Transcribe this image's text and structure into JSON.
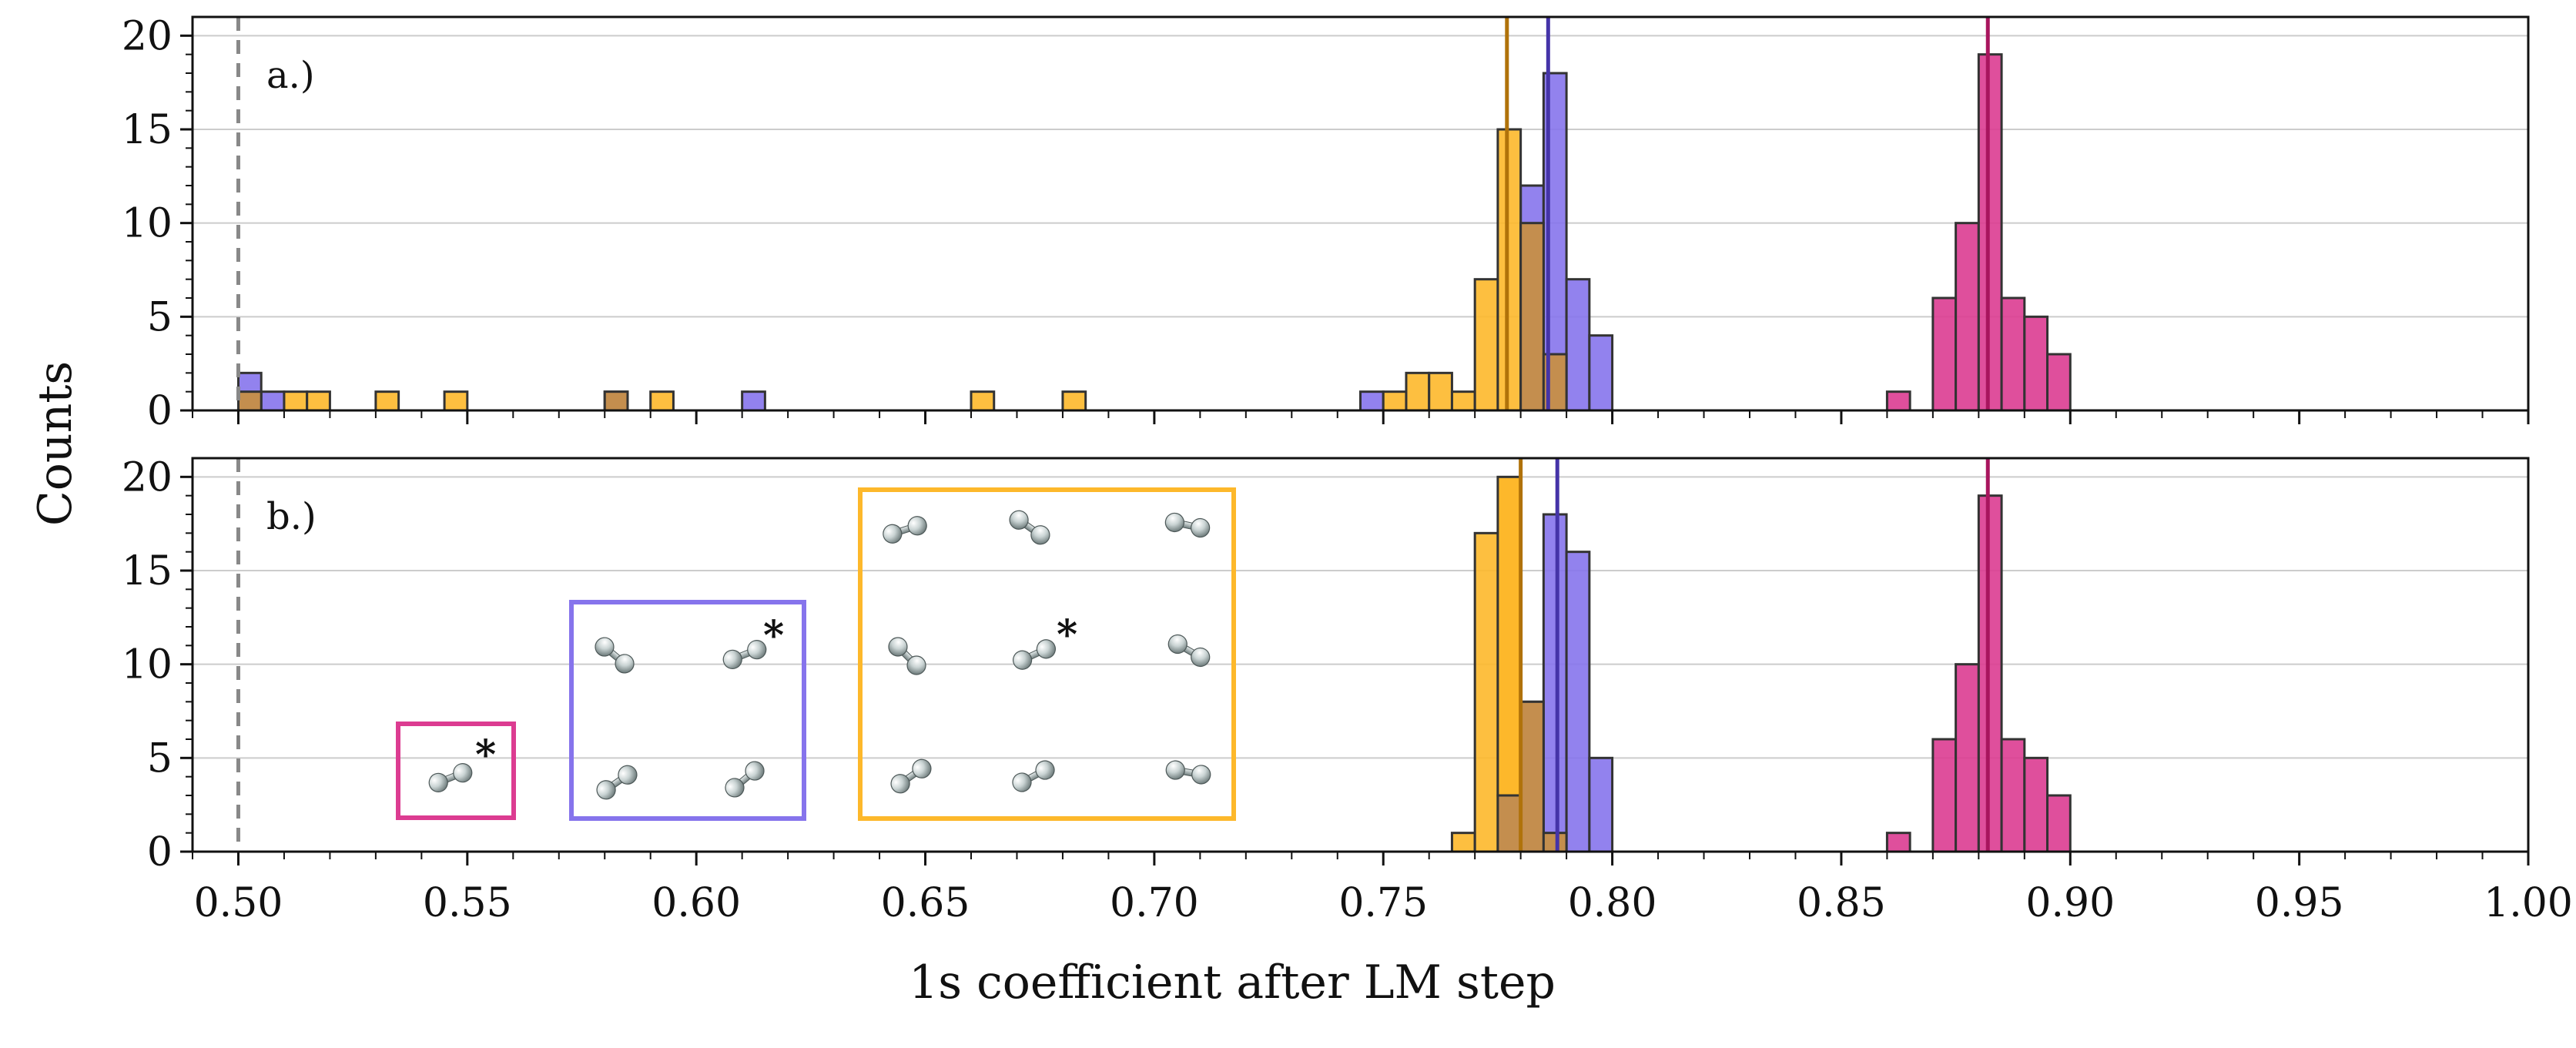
{
  "chart_data": {
    "type": "histogram",
    "xlabel": "1s coefficient after LM step",
    "ylabel": "Counts",
    "xlim": [
      0.49,
      1.0
    ],
    "ylim": [
      0,
      21
    ],
    "xticks": [
      "0.50",
      "0.55",
      "0.60",
      "0.65",
      "0.70",
      "0.75",
      "0.80",
      "0.85",
      "0.90",
      "0.95",
      "1.00"
    ],
    "yticks": [
      "0",
      "5",
      "10",
      "15",
      "20"
    ],
    "bin_width": 0.005,
    "reference_line_x": 0.5,
    "colors": {
      "pink": "#dc3c91",
      "pink_line": "#a8155e",
      "purple": "#8674ec",
      "purple_line": "#4534a8",
      "orange": "#fdb82b",
      "orange_line": "#b0720a",
      "overlap": "#c48e4e",
      "grid": "#cccccc",
      "refline": "#888888"
    },
    "panels": [
      {
        "label": "a.)",
        "series": [
          {
            "name": "pink",
            "bins": [
              [
                0.86,
                1
              ],
              [
                0.87,
                6
              ],
              [
                0.875,
                10
              ],
              [
                0.88,
                19
              ],
              [
                0.885,
                6
              ],
              [
                0.89,
                5
              ],
              [
                0.895,
                3
              ]
            ],
            "mean": 0.882
          },
          {
            "name": "purple",
            "bins": [
              [
                0.5,
                2
              ],
              [
                0.505,
                1
              ],
              [
                0.58,
                1
              ],
              [
                0.61,
                1
              ],
              [
                0.745,
                1
              ],
              [
                0.78,
                12
              ],
              [
                0.785,
                18
              ],
              [
                0.79,
                7
              ],
              [
                0.795,
                4
              ]
            ],
            "mean": 0.786
          },
          {
            "name": "orange",
            "bins": [
              [
                0.5,
                1
              ],
              [
                0.51,
                1
              ],
              [
                0.515,
                1
              ],
              [
                0.53,
                1
              ],
              [
                0.545,
                1
              ],
              [
                0.58,
                1
              ],
              [
                0.59,
                1
              ],
              [
                0.66,
                1
              ],
              [
                0.68,
                1
              ],
              [
                0.75,
                1
              ],
              [
                0.755,
                2
              ],
              [
                0.76,
                2
              ],
              [
                0.765,
                1
              ],
              [
                0.77,
                7
              ],
              [
                0.775,
                15
              ],
              [
                0.78,
                10
              ],
              [
                0.785,
                3
              ]
            ],
            "mean": 0.777
          }
        ]
      },
      {
        "label": "b.)",
        "series": [
          {
            "name": "pink",
            "bins": [
              [
                0.86,
                1
              ],
              [
                0.87,
                6
              ],
              [
                0.875,
                10
              ],
              [
                0.88,
                19
              ],
              [
                0.885,
                6
              ],
              [
                0.89,
                5
              ],
              [
                0.895,
                3
              ]
            ],
            "mean": 0.882
          },
          {
            "name": "purple",
            "bins": [
              [
                0.775,
                3
              ],
              [
                0.78,
                8
              ],
              [
                0.785,
                18
              ],
              [
                0.79,
                16
              ],
              [
                0.795,
                5
              ]
            ],
            "mean": 0.788
          },
          {
            "name": "orange",
            "bins": [
              [
                0.765,
                1
              ],
              [
                0.77,
                17
              ],
              [
                0.775,
                20
              ],
              [
                0.78,
                8
              ],
              [
                0.785,
                1
              ]
            ],
            "mean": 0.78
          }
        ],
        "insets": [
          {
            "name": "pink-box",
            "color": "pink",
            "star": "*"
          },
          {
            "name": "purple-box",
            "color": "purple",
            "star": "*"
          },
          {
            "name": "orange-box",
            "color": "orange",
            "star": "*"
          }
        ]
      }
    ]
  }
}
